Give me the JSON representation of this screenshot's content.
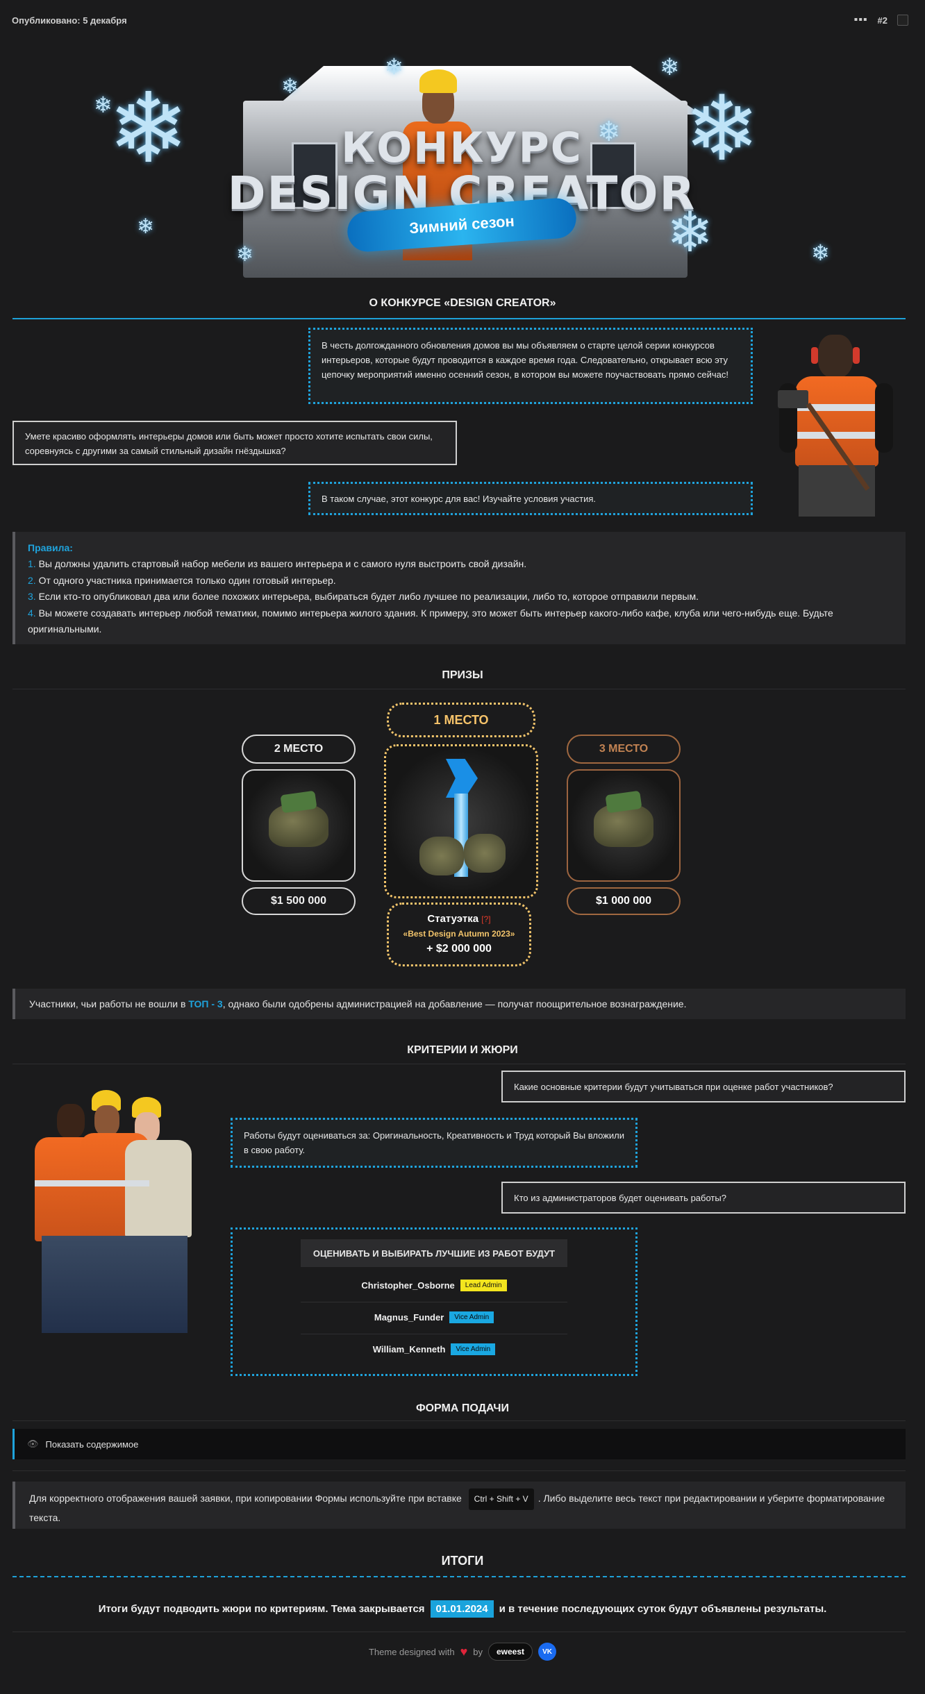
{
  "header": {
    "published": "Опубликовано: 5 декабря",
    "menu_icon": "more-icon",
    "post_number": "#2"
  },
  "banner": {
    "line1": "КОНКУРС",
    "line2": "DESIGN CREATOR",
    "ribbon": "Зимний сезон",
    "flake": "❄"
  },
  "about": {
    "title": "О КОНКУРСЕ «DESIGN CREATOR»",
    "bubble1": "В честь долгожданного обновления домов вы мы объявляем о старте целой серии конкурсов интерьеров, которые будут проводится в каждое время года. Следовательно, открывает всю эту цепочку мероприятий именно осенний сезон, в котором вы можете поучаствовать прямо сейчас!",
    "bubble2": "Умете красиво оформлять интерьеры домов или быть может просто хотите испытать свои силы, соревнуясь с другими за самый стильный дизайн гнёздышка?",
    "bubble3": "В таком случае, этот конкурс для вас! Изучайте условия участия."
  },
  "rules": {
    "title": "Правила:",
    "items": [
      {
        "num": "1.",
        "text": "Вы должны удалить стартовый набор мебели из вашего интерьера и с самого нуля выстроить свой дизайн."
      },
      {
        "num": "2.",
        "text": "От одного участника принимается только один готовый интерьер."
      },
      {
        "num": "3.",
        "text": "Если кто-то опубликовал два или более похожих интерьера, выбираться будет либо лучшее по реализации, либо то, которое отправили первым."
      },
      {
        "num": "4.",
        "text": "Вы можете создавать интерьер любой тематики, помимо интерьера жилого здания. К примеру, это может быть интерьер какого-либо кафе, клуба или чего-нибудь еще. Будьте оригинальными."
      }
    ]
  },
  "prizes": {
    "title": "ПРИЗЫ",
    "first": {
      "place": "1 МЕСТО",
      "statue": "Статуэтка",
      "statue_mark": "[?]",
      "statue_name": "«Best Design Autumn 2023»",
      "money": "+ $2 000 000"
    },
    "second": {
      "place": "2 МЕСТО",
      "money": "$1 500 000"
    },
    "third": {
      "place": "3 МЕСТО",
      "money": "$1 000 000"
    },
    "note_pre": "Участники, чьи работы не вошли в ",
    "note_hl": "ТОП - 3",
    "note_post": ", однако были одобрены администрацией на добавление — получат поощрительное вознаграждение."
  },
  "criteria": {
    "title": "КРИТЕРИИ И ЖЮРИ",
    "q1": "Какие основные критерии будут учитываться при оценке работ участников?",
    "a1": "Работы будут оцениваться за: Оригинальность, Креативность и Труд который Вы вложили в свою работу.",
    "q2": "Кто из администраторов будет оценивать работы?",
    "jury_title": "ОЦЕНИВАТЬ И ВЫБИРАТЬ ЛУЧШИЕ ИЗ РАБОТ БУДУТ",
    "jury": [
      {
        "name": "Christopher_Osborne",
        "role": "Lead Admin"
      },
      {
        "name": "Magnus_Funder",
        "role": "Vice Admin"
      },
      {
        "name": "William_Kenneth",
        "role": "Vice Admin"
      }
    ]
  },
  "form": {
    "title": "ФОРМА ПОДАЧИ",
    "spoiler": "Показать содержимое",
    "note_pre": "Для корректного отображения вашей заявки, при копировании Формы используйте при вставке ",
    "kbd": "Ctrl + Shift + V",
    "note_post": ". Либо выделите весь текст при редактировании и уберите форматирование текста."
  },
  "results": {
    "title": "ИТОГИ",
    "pre": "Итоги будут подводить жюри по критериям. Тема закрывается",
    "date": "01.01.2024",
    "post": "и в течение последующих суток будут объявлены результаты."
  },
  "footer": {
    "designed": "Theme designed with",
    "by": "by",
    "author": "eweest",
    "vk": "VK"
  },
  "colors": {
    "accent": "#1fa3dc",
    "gold": "#f2c46b",
    "bronze": "#a06840",
    "lead_badge": "#f3e51e"
  }
}
